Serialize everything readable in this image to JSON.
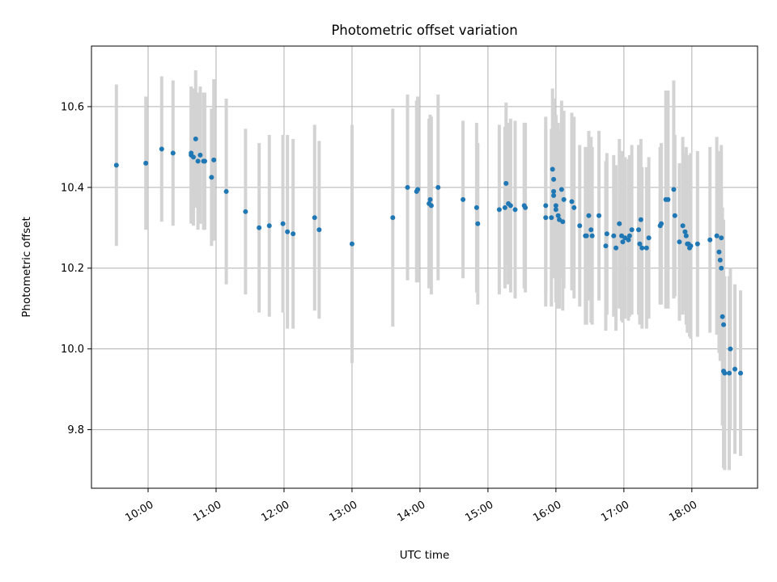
{
  "chart_data": {
    "type": "scatter",
    "title": "Photometric offset variation",
    "xlabel": "UTC time",
    "ylabel": "Photometric offset",
    "x_tick_labels": [
      "10:00",
      "11:00",
      "12:00",
      "13:00",
      "14:00",
      "15:00",
      "16:00",
      "17:00",
      "18:00"
    ],
    "y_tick_labels": [
      "9.8",
      "10.0",
      "10.2",
      "10.4",
      "10.6"
    ],
    "y_ticks": [
      9.8,
      10.0,
      10.2,
      10.4,
      10.6
    ],
    "xlim": [
      "09:10",
      "18:58"
    ],
    "ylim": [
      9.655,
      10.75
    ],
    "grid": true,
    "colors": {
      "points": "#1f77b4",
      "errorbars": "#d3d3d3",
      "grid": "#b0b0b0"
    },
    "series": [
      {
        "x": [
          "09:32",
          "09:58",
          "10:12",
          "10:22",
          "10:38",
          "10:38",
          "10:40",
          "10:42",
          "10:44",
          "10:46",
          "10:49",
          "10:50",
          "10:56",
          "10:58",
          "11:09",
          "11:26",
          "11:38",
          "11:47",
          "11:59",
          "12:03",
          "12:08",
          "12:27",
          "12:31",
          "13:00",
          "13:36",
          "13:49",
          "13:57",
          "13:58",
          "14:08",
          "14:09",
          "14:10",
          "14:16",
          "14:38",
          "14:50",
          "14:51",
          "15:10",
          "15:15",
          "15:16",
          "15:18",
          "15:20",
          "15:24",
          "15:32",
          "15:33",
          "15:51",
          "15:51",
          "15:56",
          "15:57",
          "15:58",
          "15:58",
          "15:58",
          "16:00",
          "16:00",
          "16:02",
          "16:03",
          "16:05",
          "16:06",
          "16:07",
          "16:14",
          "16:16",
          "16:21",
          "16:26",
          "16:27",
          "16:29",
          "16:31",
          "16:32",
          "16:38",
          "16:44",
          "16:45",
          "16:51",
          "16:53",
          "16:56",
          "16:58",
          "16:59",
          "17:01",
          "17:04",
          "17:05",
          "17:07",
          "17:13",
          "17:14",
          "17:15",
          "17:16",
          "17:20",
          "17:22",
          "17:32",
          "17:33",
          "17:37",
          "17:39",
          "17:44",
          "17:45",
          "17:49",
          "17:52",
          "17:54",
          "17:55",
          "17:56",
          "17:57",
          "17:58",
          "17:59",
          "18:05",
          "18:16",
          "18:22",
          "18:24",
          "18:25",
          "18:26",
          "18:26",
          "18:27",
          "18:28",
          "18:28",
          "18:29",
          "18:33",
          "18:34",
          "18:38",
          "18:43"
        ],
        "y": [
          10.455,
          10.46,
          10.495,
          10.485,
          10.48,
          10.485,
          10.475,
          10.52,
          10.465,
          10.48,
          10.465,
          10.465,
          10.425,
          10.468,
          10.39,
          10.34,
          10.3,
          10.305,
          10.31,
          10.29,
          10.285,
          10.325,
          10.295,
          10.26,
          10.325,
          10.4,
          10.39,
          10.395,
          10.36,
          10.37,
          10.355,
          10.4,
          10.37,
          10.35,
          10.31,
          10.345,
          10.35,
          10.41,
          10.36,
          10.355,
          10.345,
          10.355,
          10.35,
          10.355,
          10.325,
          10.325,
          10.445,
          10.42,
          10.39,
          10.38,
          10.355,
          10.345,
          10.33,
          10.32,
          10.395,
          10.315,
          10.37,
          10.365,
          10.35,
          10.305,
          10.28,
          10.28,
          10.33,
          10.295,
          10.28,
          10.33,
          10.255,
          10.285,
          10.28,
          10.25,
          10.31,
          10.28,
          10.265,
          10.275,
          10.27,
          10.28,
          10.295,
          10.295,
          10.26,
          10.32,
          10.25,
          10.25,
          10.275,
          10.305,
          10.31,
          10.37,
          10.37,
          10.395,
          10.33,
          10.265,
          10.305,
          10.29,
          10.28,
          10.26,
          10.26,
          10.25,
          10.255,
          10.26,
          10.27,
          10.28,
          10.24,
          10.22,
          10.2,
          10.275,
          10.08,
          10.06,
          9.945,
          9.94,
          9.94,
          10.0,
          9.95,
          9.94
        ],
        "yerr": [
          0.2,
          0.165,
          0.18,
          0.18,
          0.17,
          0.16,
          0.17,
          0.17,
          0.17,
          0.17,
          0.17,
          0.17,
          0.17,
          0.2,
          0.23,
          0.205,
          0.21,
          0.225,
          0.22,
          0.24,
          0.235,
          0.23,
          0.22,
          0.295,
          0.27,
          0.23,
          0.225,
          0.23,
          0.21,
          0.21,
          0.22,
          0.23,
          0.195,
          0.21,
          0.2,
          0.21,
          0.2,
          0.2,
          0.2,
          0.215,
          0.22,
          0.205,
          0.21,
          0.22,
          0.22,
          0.22,
          0.2,
          0.2,
          0.205,
          0.205,
          0.225,
          0.23,
          0.23,
          0.22,
          0.22,
          0.22,
          0.22,
          0.22,
          0.225,
          0.2,
          0.22,
          0.22,
          0.21,
          0.23,
          0.22,
          0.21,
          0.21,
          0.2,
          0.2,
          0.205,
          0.21,
          0.21,
          0.2,
          0.2,
          0.2,
          0.2,
          0.21,
          0.21,
          0.2,
          0.2,
          0.2,
          0.2,
          0.2,
          0.195,
          0.2,
          0.27,
          0.27,
          0.27,
          0.2,
          0.195,
          0.22,
          0.195,
          0.22,
          0.22,
          0.22,
          0.22,
          0.23,
          0.23,
          0.23,
          0.245,
          0.25,
          0.25,
          0.2,
          0.23,
          0.27,
          0.26,
          0.24,
          0.24,
          0.24,
          0.2,
          0.21,
          0.205
        ]
      }
    ]
  }
}
